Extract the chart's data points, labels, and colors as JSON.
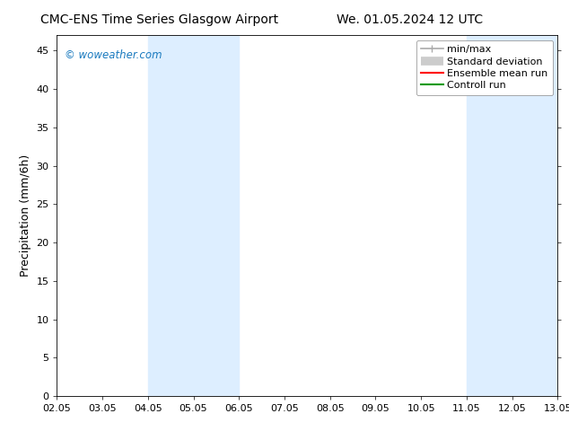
{
  "title_left": "CMC-ENS Time Series Glasgow Airport",
  "title_right": "We. 01.05.2024 12 UTC",
  "ylabel": "Precipitation (mm/6h)",
  "xlim_dates": [
    "02.05",
    "03.05",
    "04.05",
    "05.05",
    "06.05",
    "07.05",
    "08.05",
    "09.05",
    "10.05",
    "11.05",
    "12.05",
    "13.05"
  ],
  "xlim": [
    2,
    13
  ],
  "ylim": [
    0,
    47
  ],
  "yticks": [
    0,
    5,
    10,
    15,
    20,
    25,
    30,
    35,
    40,
    45
  ],
  "shaded_regions": [
    {
      "xstart": 4,
      "xend": 6,
      "color": "#ddeeff"
    },
    {
      "xstart": 11,
      "xend": 13,
      "color": "#ddeeff"
    }
  ],
  "watermark_text": "© woweather.com",
  "watermark_color": "#1a7abf",
  "legend_items": [
    {
      "label": "min/max",
      "color": "#aaaaaa",
      "lw": 1.2,
      "type": "minmax"
    },
    {
      "label": "Standard deviation",
      "color": "#cccccc",
      "lw": 7,
      "type": "thick"
    },
    {
      "label": "Ensemble mean run",
      "color": "#ff0000",
      "lw": 1.5,
      "type": "line"
    },
    {
      "label": "Controll run",
      "color": "#009900",
      "lw": 1.5,
      "type": "line"
    }
  ],
  "bg_color": "#ffffff",
  "title_fontsize": 10,
  "axis_fontsize": 9,
  "tick_fontsize": 8,
  "legend_fontsize": 8
}
